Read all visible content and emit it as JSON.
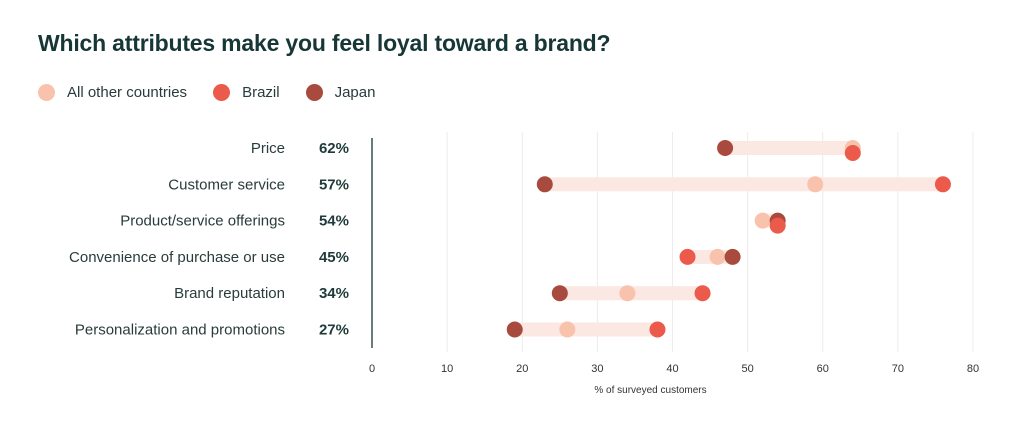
{
  "chart_data": {
    "type": "dot-range",
    "title": "Which attributes make you feel loyal toward a brand?",
    "xlabel": "% of surveyed customers",
    "xlim": [
      0,
      80
    ],
    "xticks": [
      0,
      10,
      20,
      30,
      40,
      50,
      60,
      70,
      80
    ],
    "legend_position": "top-left",
    "series": [
      {
        "name": "All other countries",
        "color": "#f9c2ad"
      },
      {
        "name": "Brazil",
        "color": "#ec5a4b"
      },
      {
        "name": "Japan",
        "color": "#a94a3e"
      }
    ],
    "rows": [
      {
        "category": "Price",
        "overall": "62%",
        "values": {
          "All other countries": 64,
          "Brazil": 64,
          "Japan": 47
        }
      },
      {
        "category": "Customer service",
        "overall": "57%",
        "values": {
          "All other countries": 59,
          "Brazil": 76,
          "Japan": 23
        }
      },
      {
        "category": "Product/service offerings",
        "overall": "54%",
        "values": {
          "All other countries": 52,
          "Brazil": 54,
          "Japan": 54
        }
      },
      {
        "category": "Convenience of purchase or use",
        "overall": "45%",
        "values": {
          "All other countries": 46,
          "Brazil": 42,
          "Japan": 48
        }
      },
      {
        "category": "Brand reputation",
        "overall": "34%",
        "values": {
          "All other countries": 34,
          "Brazil": 44,
          "Japan": 25
        }
      },
      {
        "category": "Personalization and promotions",
        "overall": "27%",
        "values": {
          "All other countries": 26,
          "Brazil": 38,
          "Japan": 19
        }
      }
    ],
    "colors": {
      "range_band": "#fbe8e2",
      "grid": "#ececec",
      "axis": "#173636"
    }
  }
}
